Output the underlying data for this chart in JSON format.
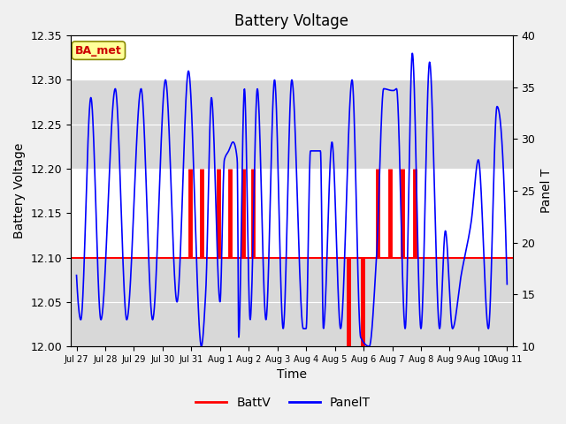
{
  "title": "Battery Voltage",
  "xlabel": "Time",
  "ylabel_left": "Battery Voltage",
  "ylabel_right": "Panel T",
  "ylim_left": [
    12.0,
    12.35
  ],
  "ylim_right": [
    10,
    40
  ],
  "background_color": "#f0f0f0",
  "plot_bg_color": "#f0f0f0",
  "band_light": "#ffffff",
  "band_dark": "#d8d8d8",
  "annotation_text": "BA_met",
  "annotation_bg": "#ffff99",
  "annotation_border": "#cc0000",
  "xtick_labels": [
    "Jul 27",
    "Jul 28",
    "Jul 29",
    "Jul 30",
    "Jul 31",
    "Aug 1",
    "Aug 2",
    "Aug 3",
    "Aug 4",
    "Aug 5",
    "Aug 6",
    "Aug 7",
    "Aug 8",
    "Aug 9",
    "Aug 10",
    "Aug 11"
  ],
  "legend_labels": [
    "BattV",
    "PanelT"
  ],
  "legend_colors": [
    "#ff0000",
    "#0000ff"
  ],
  "batt_color": "#ff0000",
  "panel_color": "#0000ff",
  "line_lw": 1.2,
  "batt_lw": 1.5,
  "band_edges": [
    12.0,
    12.1,
    12.2,
    12.3,
    12.35
  ],
  "band_colors": [
    "#d8d8d8",
    "#ffffff",
    "#d8d8d8",
    "#ffffff"
  ]
}
